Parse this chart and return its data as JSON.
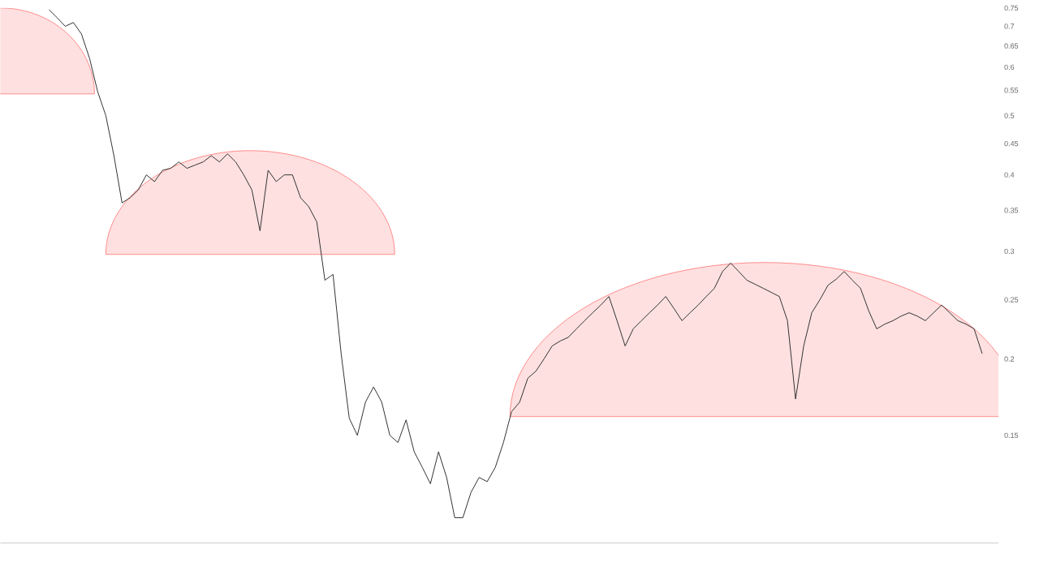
{
  "chart_data": {
    "type": "line",
    "log": "y",
    "tick_labels": "y",
    "color": "#333333",
    "ylim": [
      0.1,
      0.75
    ],
    "yticks": [
      0.15,
      0.2,
      0.25,
      0.3,
      0.35,
      0.4,
      0.45,
      0.5,
      0.55,
      0.6,
      0.65,
      0.7,
      0.75
    ],
    "categories": [
      null,
      null,
      null,
      null,
      null,
      null,
      null,
      null,
      null,
      null,
      null,
      null,
      null,
      null,
      null,
      null,
      null,
      null,
      null,
      null,
      null,
      null,
      null,
      null,
      null,
      null,
      null,
      null,
      null,
      null,
      null,
      null,
      null,
      null,
      null,
      null,
      null,
      null,
      null,
      null,
      null,
      null,
      null,
      null,
      null,
      null,
      null,
      null,
      null,
      null,
      null,
      null,
      null,
      null,
      null,
      null,
      null,
      null,
      null,
      null,
      null,
      null,
      null,
      null,
      null,
      null,
      null,
      null,
      null,
      null,
      null,
      null,
      null,
      null,
      null,
      null,
      null,
      null,
      null,
      null,
      null,
      null,
      null,
      null,
      null,
      null,
      null,
      null,
      null,
      null,
      null,
      null,
      null,
      null,
      null,
      null,
      null,
      null,
      null,
      null,
      null,
      null,
      null,
      null,
      null,
      null,
      null,
      null,
      null,
      null,
      null,
      null,
      null,
      null,
      null,
      null,
      null,
      null,
      null,
      null,
      null,
      null
    ],
    "values": [
      null,
      null,
      null,
      null,
      null,
      null,
      0.745,
      0.723,
      0.7,
      0.71,
      0.68,
      0.62,
      0.547,
      0.5,
      0.43,
      0.36,
      0.367,
      0.378,
      0.4,
      0.39,
      0.407,
      0.41,
      0.42,
      0.41,
      0.415,
      0.42,
      0.43,
      0.42,
      0.433,
      0.42,
      0.4,
      0.378,
      0.324,
      0.407,
      0.39,
      0.4,
      0.4,
      0.367,
      0.355,
      0.335,
      0.269,
      0.275,
      0.204,
      0.16,
      0.15,
      0.17,
      0.18,
      0.17,
      0.15,
      0.146,
      0.159,
      0.141,
      0.133,
      0.125,
      0.141,
      0.128,
      0.11,
      0.11,
      0.121,
      0.128,
      0.126,
      0.133,
      0.146,
      0.164,
      0.17,
      0.186,
      0.191,
      0.2,
      0.21,
      0.214,
      0.217,
      0.224,
      0.231,
      0.238,
      0.245,
      0.253,
      0.231,
      0.21,
      0.224,
      0.231,
      0.238,
      0.245,
      0.253,
      0.242,
      0.231,
      0.238,
      0.245,
      0.253,
      0.261,
      0.278,
      0.287,
      0.278,
      0.269,
      0.265,
      0.261,
      0.257,
      0.253,
      0.231,
      0.172,
      0.21,
      0.238,
      0.25,
      0.264,
      0.27,
      0.278,
      0.269,
      0.261,
      0.24,
      0.224,
      0.228,
      0.231,
      0.235,
      0.238,
      0.235,
      0.231,
      0.238,
      0.245,
      0.238,
      0.231,
      0.228,
      0.224,
      0.204
    ]
  }
}
